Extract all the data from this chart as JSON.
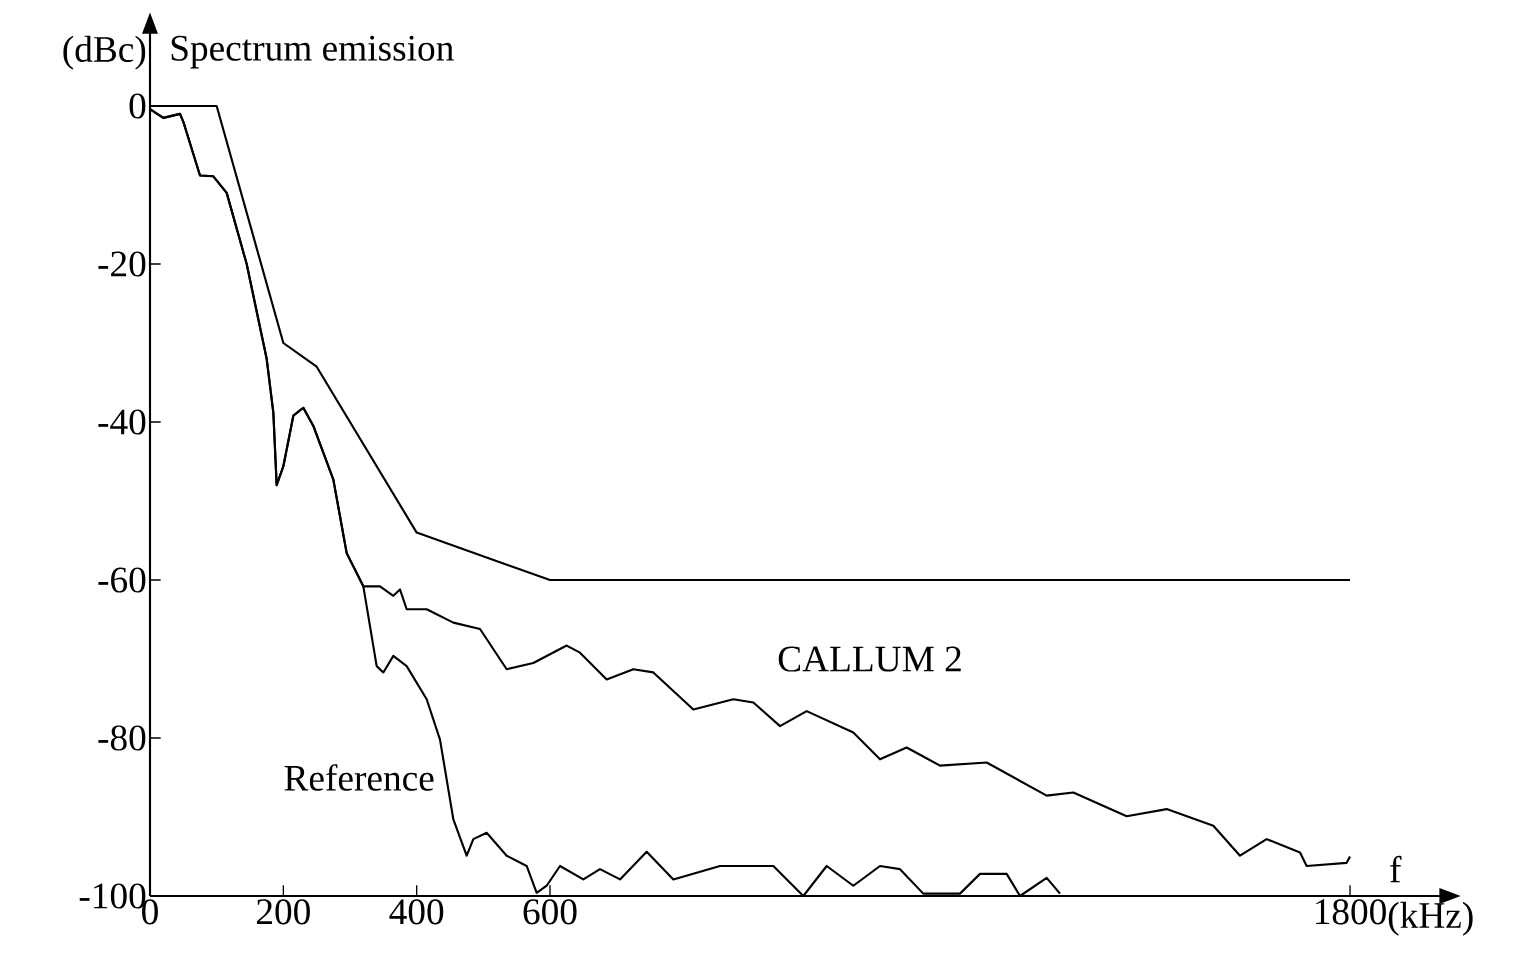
{
  "chart_data": {
    "type": "line",
    "title": "Spectrum emission",
    "ylabel": "(dBc)",
    "xlabel": "(kHz)",
    "annotations": [
      "f"
    ],
    "xlim": [
      0,
      1936
    ],
    "ylim": [
      -100,
      9.3
    ],
    "xticks": [
      0,
      200,
      400,
      600,
      1800
    ],
    "yticks": [
      0,
      -20,
      -40,
      -60,
      -80,
      -100
    ],
    "grid": false,
    "line_style": "solid",
    "series": [
      {
        "color": "#000000",
        "x": [
          0,
          100,
          200,
          250,
          400,
          600,
          1800
        ],
        "values": [
          0,
          0,
          -30,
          -33,
          -54,
          -60,
          -60
        ]
      },
      {
        "name": "Reference",
        "color": "#000000",
        "x": [
          0,
          20,
          45,
          50,
          75,
          95,
          115,
          145,
          175,
          185,
          190,
          200,
          215,
          230,
          245,
          275,
          295,
          320,
          340,
          350,
          365,
          385,
          415,
          435,
          455,
          475,
          485,
          505,
          535,
          565,
          580,
          595,
          615,
          650,
          675,
          705,
          745,
          785,
          855,
          935,
          980,
          1015,
          1055,
          1095,
          1125,
          1160,
          1215,
          1245,
          1285,
          1305,
          1345,
          1365
        ],
        "values": [
          -0.4,
          -1.5,
          -1,
          -2,
          -8.8,
          -8.9,
          -11,
          -20,
          -32,
          -38.8,
          -48,
          -45.6,
          -39.2,
          -38.2,
          -40.5,
          -47.3,
          -56.6,
          -60.8,
          -70.9,
          -71.7,
          -69.6,
          -70.9,
          -75.1,
          -80.2,
          -90.3,
          -94.9,
          -92.8,
          -92,
          -94.9,
          -96.2,
          -99.6,
          -98.7,
          -96.2,
          -97.9,
          -96.6,
          -97.9,
          -94.4,
          -97.9,
          -96.2,
          -96.2,
          -100,
          -96.2,
          -98.7,
          -96.2,
          -96.6,
          -99.7,
          -99.7,
          -97.2,
          -97.2,
          -100,
          -97.7,
          -99.7
        ]
      },
      {
        "name": "CALLUM 2",
        "color": "#000000",
        "x": [
          0,
          20,
          45,
          50,
          75,
          95,
          115,
          145,
          175,
          185,
          190,
          200,
          215,
          230,
          245,
          275,
          295,
          320,
          345,
          365,
          375,
          385,
          415,
          455,
          495,
          535,
          575,
          625,
          645,
          685,
          725,
          755,
          815,
          875,
          905,
          945,
          985,
          1055,
          1095,
          1135,
          1185,
          1255,
          1345,
          1385,
          1465,
          1525,
          1595,
          1635,
          1675,
          1725,
          1735,
          1795,
          1800
        ],
        "values": [
          -0.4,
          -1.5,
          -1,
          -2,
          -8.8,
          -8.9,
          -11,
          -20,
          -32,
          -38.8,
          -48,
          -45.6,
          -39.2,
          -38.2,
          -40.5,
          -47.3,
          -56.6,
          -60.8,
          -60.8,
          -62,
          -61.2,
          -63.7,
          -63.7,
          -65.4,
          -66.2,
          -71.3,
          -70.5,
          -68.3,
          -69.2,
          -72.6,
          -71.3,
          -71.7,
          -76.4,
          -75.1,
          -75.5,
          -78.5,
          -76.6,
          -79.3,
          -82.7,
          -81.2,
          -83.5,
          -83.1,
          -87.3,
          -86.9,
          -89.9,
          -89,
          -91.1,
          -94.9,
          -92.8,
          -94.5,
          -96.2,
          -95.8,
          -95
        ]
      }
    ]
  }
}
